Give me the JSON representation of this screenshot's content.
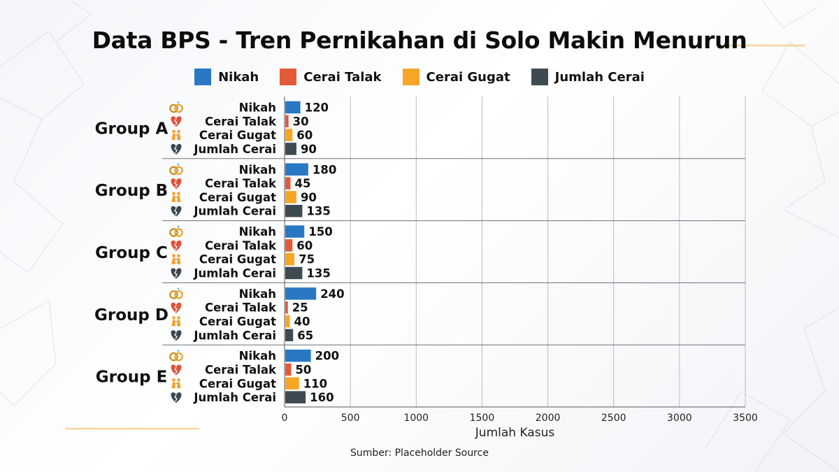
{
  "title": "Data BPS - Tren Pernikahan di Solo Makin Menurun",
  "source": "Sumber: Placeholder Source",
  "colors": {
    "nikah": "#2a78c4",
    "cerai_talak": "#e25a38",
    "cerai_gugat": "#f6a626",
    "jumlah_cerai": "#3e4a52"
  },
  "legend": [
    {
      "label": "Nikah",
      "color": "#2a78c4"
    },
    {
      "label": "Cerai Talak",
      "color": "#e25a38"
    },
    {
      "label": "Cerai Gugat",
      "color": "#f6a626"
    },
    {
      "label": "Jumlah Cerai",
      "color": "#3e4a52"
    }
  ],
  "chart_data": {
    "type": "bar",
    "orientation": "horizontal",
    "groups": [
      "Group A",
      "Group B",
      "Group C",
      "Group D",
      "Group E"
    ],
    "series": [
      {
        "name": "Nikah",
        "icon": "rings-icon",
        "color": "#2a78c4",
        "values": [
          120,
          180,
          150,
          240,
          200
        ]
      },
      {
        "name": "Cerai Talak",
        "icon": "broken-heart-icon",
        "color": "#e25a38",
        "values": [
          30,
          45,
          60,
          25,
          50
        ]
      },
      {
        "name": "Cerai Gugat",
        "icon": "couple-icon",
        "color": "#f6a626",
        "values": [
          60,
          90,
          75,
          40,
          110
        ]
      },
      {
        "name": "Jumlah Cerai",
        "icon": "dark-broken-heart-icon",
        "color": "#3e4a52",
        "values": [
          90,
          135,
          135,
          65,
          160
        ]
      }
    ],
    "xlabel": "Jumlah Kasus",
    "xlim": [
      0,
      3500
    ],
    "xticks": [
      0,
      500,
      1000,
      1500,
      2000,
      2500,
      3000,
      3500
    ],
    "grid": true,
    "legend_position": "top"
  }
}
